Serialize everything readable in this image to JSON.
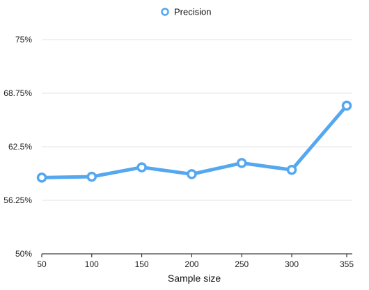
{
  "chart_data": {
    "type": "line",
    "x": [
      50,
      100,
      150,
      200,
      250,
      300,
      355
    ],
    "series": [
      {
        "name": "Precision",
        "values": [
          58.9,
          59.0,
          60.1,
          59.3,
          60.6,
          59.8,
          67.3
        ]
      }
    ],
    "xlabel": "Sample size",
    "ylabel": "",
    "ylim": [
      50,
      75
    ],
    "yticks": [
      50,
      56.25,
      62.5,
      68.75,
      75
    ],
    "ytick_labels": [
      "50%",
      "56.25%",
      "62.5%",
      "68.75%",
      "75%"
    ],
    "xtick_labels": [
      "50",
      "100",
      "150",
      "200",
      "250",
      "300",
      "355"
    ],
    "legend_position": "top-center",
    "grid": "horizontal",
    "colors": {
      "series": "#55a7f0",
      "marker_fill": "#ffffff",
      "axis": "#111111",
      "grid": "#e3e3e3"
    }
  }
}
